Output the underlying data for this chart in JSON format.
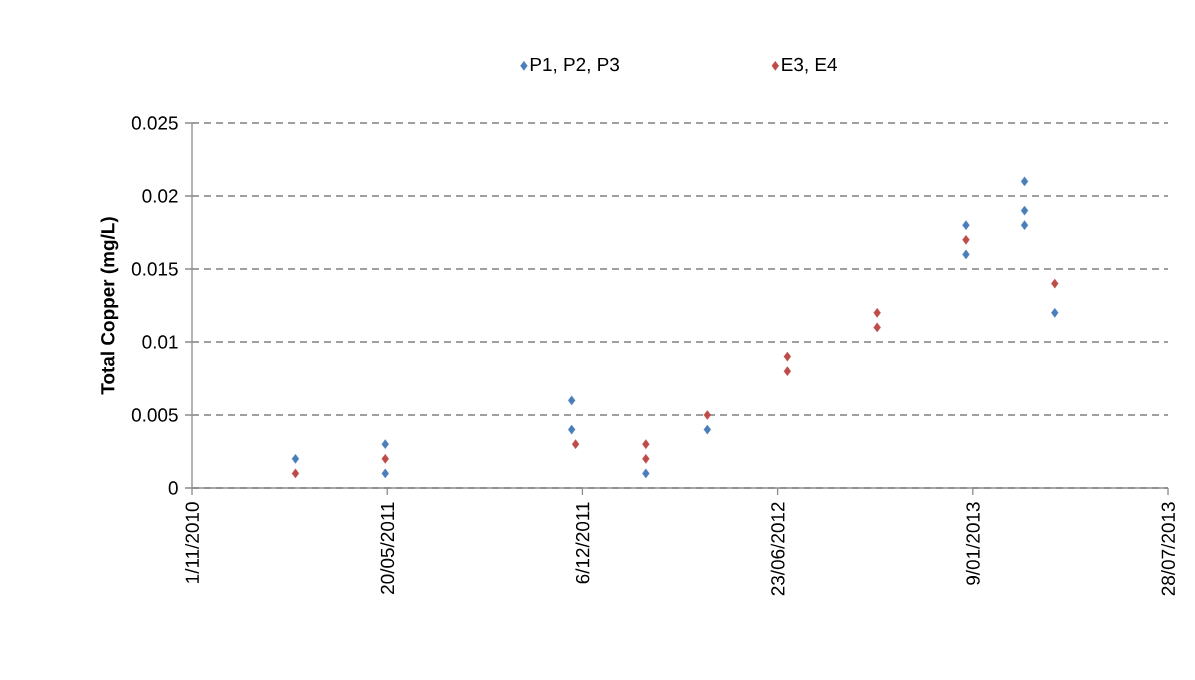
{
  "chart_data": {
    "type": "scatter",
    "ylabel": "Total Copper (mg/L)",
    "xlim": [
      "2010-11-01",
      "2013-07-28"
    ],
    "xticks": [
      {
        "value": "2010-11-01",
        "label": "1/11/2010"
      },
      {
        "value": "2011-05-20",
        "label": "20/05/2011"
      },
      {
        "value": "2011-12-06",
        "label": "6/12/2011"
      },
      {
        "value": "2012-06-23",
        "label": "23/06/2012"
      },
      {
        "value": "2013-01-09",
        "label": "9/01/2013"
      },
      {
        "value": "2013-07-28",
        "label": "28/07/2013"
      }
    ],
    "ylim": [
      0,
      0.025
    ],
    "yticks": [
      0,
      0.005,
      0.01,
      0.015,
      0.02,
      0.025
    ],
    "grid": "y",
    "legend": "top",
    "marker": "diamond",
    "series": [
      {
        "name": "P1, P2, P3",
        "color": "#4a7ebb",
        "x": [
          "2011-02-15",
          "2011-05-18",
          "2011-05-18",
          "2011-11-25",
          "2011-11-25",
          "2012-02-09",
          "2012-04-12",
          "2013-01-02",
          "2013-01-02",
          "2013-03-03",
          "2013-03-03",
          "2013-03-03",
          "2013-04-03"
        ],
        "values": [
          0.002,
          0.003,
          0.001,
          0.006,
          0.004,
          0.001,
          0.004,
          0.018,
          0.016,
          0.021,
          0.019,
          0.018,
          0.012
        ]
      },
      {
        "name": "E3, E4",
        "color": "#be4b48",
        "x": [
          "2011-02-15",
          "2011-05-18",
          "2011-11-29",
          "2012-02-09",
          "2012-02-09",
          "2012-04-12",
          "2012-07-03",
          "2012-07-03",
          "2012-10-03",
          "2012-10-03",
          "2013-01-02",
          "2013-04-03"
        ],
        "values": [
          0.001,
          0.002,
          0.003,
          0.003,
          0.002,
          0.005,
          0.009,
          0.008,
          0.012,
          0.011,
          0.017,
          0.014
        ]
      }
    ]
  }
}
